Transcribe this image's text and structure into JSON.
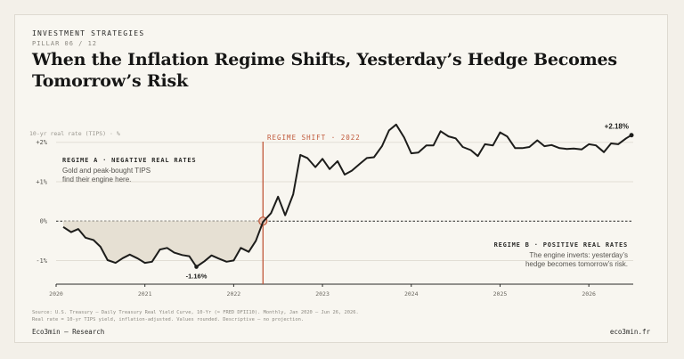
{
  "header": {
    "kicker": "INVESTMENT STRATEGIES",
    "pillar": "PILLAR 06 / 12",
    "title": "When the Inflation Regime Shifts, Yesterday’s Hedge Becomes Tomorrow’s Risk"
  },
  "footer": {
    "source_line1": "Source: U.S. Treasury — Daily Treasury Real Yield Curve, 10-Yr (≈ FRED DFII10). Monthly, Jan 2020 – Jun 26, 2026.",
    "source_line2": "Real rate = 10-yr TIPS yield, inflation-adjusted. Values rounded. Descriptive — no projection.",
    "brand": "Eco3min — Research",
    "site": "eco3min.fr"
  },
  "colors": {
    "line": "#1d1d1b",
    "shift": "#c0583a",
    "negative_fill": "#e6e0d3",
    "grid": "#e2ded5"
  },
  "chart_data": {
    "type": "line",
    "ylabel": "10-yr real rate (TIPS) · %",
    "ylim": [
      -1.6,
      2.4
    ],
    "xlim": [
      2020.0,
      2026.5
    ],
    "y_ticks": [
      {
        "value": 2,
        "label": "+2%"
      },
      {
        "value": 1,
        "label": "+1%"
      },
      {
        "value": 0,
        "label": "0%"
      },
      {
        "value": -1,
        "label": "-1%"
      }
    ],
    "x_ticks": [
      {
        "value": 2020,
        "label": "2020"
      },
      {
        "value": 2021,
        "label": "2021"
      },
      {
        "value": 2022,
        "label": "2022"
      },
      {
        "value": 2023,
        "label": "2023"
      },
      {
        "value": 2024,
        "label": "2024"
      },
      {
        "value": 2025,
        "label": "2025"
      },
      {
        "value": 2026,
        "label": "2026"
      }
    ],
    "series": [
      {
        "x": [
          2020.08,
          2020.17,
          2020.25,
          2020.33,
          2020.42,
          2020.5,
          2020.58,
          2020.67,
          2020.75,
          2020.83,
          2020.92,
          2021.0,
          2021.08,
          2021.17,
          2021.25,
          2021.33,
          2021.42,
          2021.5,
          2021.58,
          2021.67,
          2021.75,
          2021.83,
          2021.92,
          2022.0,
          2022.08,
          2022.17,
          2022.25,
          2022.33,
          2022.42,
          2022.5,
          2022.58,
          2022.67,
          2022.75,
          2022.83,
          2022.92,
          2023.0,
          2023.08,
          2023.17,
          2023.25,
          2023.33,
          2023.42,
          2023.5,
          2023.58,
          2023.67,
          2023.75,
          2023.83,
          2023.92,
          2024.0,
          2024.08,
          2024.17,
          2024.25,
          2024.33,
          2024.42,
          2024.5,
          2024.58,
          2024.67,
          2024.75,
          2024.83,
          2024.92,
          2025.0,
          2025.08,
          2025.17,
          2025.25,
          2025.33,
          2025.42,
          2025.5,
          2025.58,
          2025.67,
          2025.75,
          2025.83,
          2025.92,
          2026.0,
          2026.08,
          2026.17,
          2026.25,
          2026.33,
          2026.42,
          2026.48
        ],
        "values": [
          -0.15,
          -0.28,
          -0.2,
          -0.42,
          -0.48,
          -0.65,
          -0.99,
          -1.06,
          -0.94,
          -0.85,
          -0.95,
          -1.06,
          -1.03,
          -0.72,
          -0.68,
          -0.8,
          -0.86,
          -0.89,
          -1.16,
          -1.02,
          -0.87,
          -0.95,
          -1.03,
          -1.0,
          -0.68,
          -0.78,
          -0.5,
          -0.02,
          0.2,
          0.62,
          0.15,
          0.68,
          1.68,
          1.6,
          1.37,
          1.58,
          1.32,
          1.52,
          1.18,
          1.28,
          1.45,
          1.6,
          1.62,
          1.9,
          2.3,
          2.45,
          2.12,
          1.72,
          1.74,
          1.92,
          1.92,
          2.28,
          2.15,
          2.1,
          1.88,
          1.8,
          1.65,
          1.95,
          1.92,
          2.25,
          2.15,
          1.85,
          1.85,
          1.88,
          2.05,
          1.9,
          1.93,
          1.85,
          1.83,
          1.84,
          1.82,
          1.95,
          1.92,
          1.75,
          1.97,
          1.95,
          2.1,
          2.18
        ]
      }
    ],
    "regime_shift": {
      "x": 2022.33,
      "label": "REGIME SHIFT · 2022"
    },
    "annotations": {
      "min_label": "-1.16%",
      "last_label": "+2.18%",
      "regime_a_title": "REGIME A · NEGATIVE REAL RATES",
      "regime_a_line1": "Gold and peak-bought TIPS",
      "regime_a_line2": "find their engine here.",
      "regime_b_title": "REGIME B · POSITIVE REAL RATES",
      "regime_b_line1": "The engine inverts: yesterday’s",
      "regime_b_line2": "hedge becomes tomorrow’s risk."
    }
  }
}
